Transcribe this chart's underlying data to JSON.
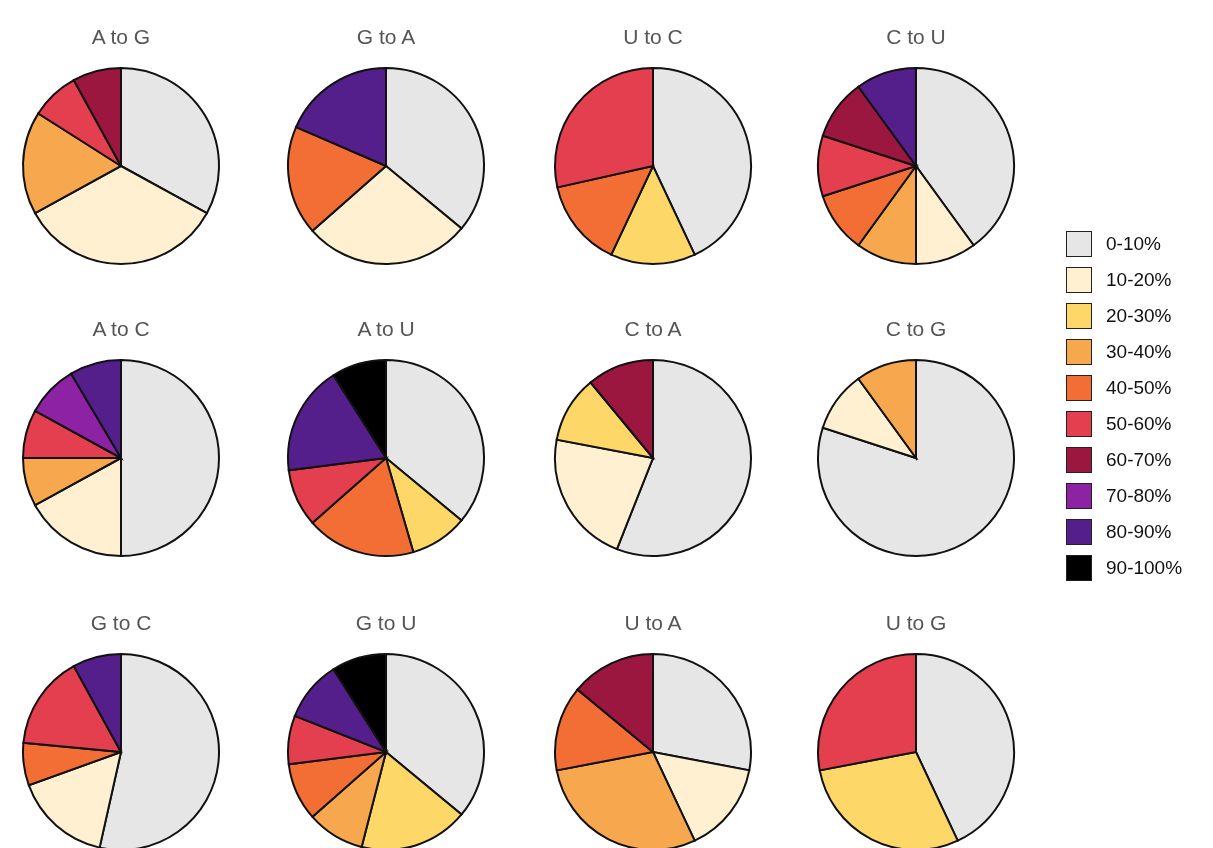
{
  "chart_data": [
    {
      "type": "pie",
      "title": "A to G",
      "legend": "right",
      "categories": [
        "0-10%",
        "10-20%",
        "20-30%",
        "30-40%",
        "40-50%",
        "50-60%",
        "60-70%",
        "70-80%",
        "80-90%",
        "90-100%"
      ],
      "values": [
        33,
        34,
        0,
        17,
        0,
        8,
        8,
        0,
        0,
        0
      ],
      "colors": [
        "#e6e6e6",
        "#fef0d0",
        "#fdd868",
        "#f7a84e",
        "#f36e35",
        "#e33f4f",
        "#9c1740",
        "#8d22a5",
        "#541f8a",
        "#000000"
      ]
    },
    {
      "type": "pie",
      "title": "G to A",
      "categories": [
        null,
        null,
        null,
        null,
        null,
        null,
        null,
        null,
        null,
        null
      ],
      "values": [
        36,
        27.5,
        0,
        0,
        18,
        0,
        0,
        0,
        18.5,
        0
      ],
      "colors": [
        "#e6e6e6",
        "#fef0d0",
        "#fdd868",
        "#f7a84e",
        "#f36e35",
        "#e33f4f",
        "#9c1740",
        "#8d22a5",
        "#541f8a",
        "#000000"
      ]
    },
    {
      "type": "pie",
      "title": "U to C",
      "categories": [
        null,
        null,
        null,
        null,
        null,
        null,
        null,
        null,
        null,
        null
      ],
      "values": [
        43,
        0,
        14,
        0,
        14.5,
        28.5,
        0,
        0,
        0,
        0
      ],
      "colors": [
        "#e6e6e6",
        "#fef0d0",
        "#fdd868",
        "#f7a84e",
        "#f36e35",
        "#e33f4f",
        "#9c1740",
        "#8d22a5",
        "#541f8a",
        "#000000"
      ]
    },
    {
      "type": "pie",
      "title": "C to U",
      "categories": [
        null,
        null,
        null,
        null,
        null,
        null,
        null,
        null,
        null,
        null
      ],
      "values": [
        40,
        10,
        0,
        10,
        10,
        10,
        10,
        0,
        10,
        0
      ],
      "colors": [
        "#e6e6e6",
        "#fef0d0",
        "#fdd868",
        "#f7a84e",
        "#f36e35",
        "#e33f4f",
        "#9c1740",
        "#8d22a5",
        "#541f8a",
        "#000000"
      ]
    },
    {
      "type": "pie",
      "title": "A to C",
      "categories": [
        null,
        null,
        null,
        null,
        null,
        null,
        null,
        null,
        null,
        null
      ],
      "values": [
        50,
        17,
        0,
        8,
        0,
        8,
        0,
        8.5,
        8.5,
        0
      ],
      "colors": [
        "#e6e6e6",
        "#fef0d0",
        "#fdd868",
        "#f7a84e",
        "#f36e35",
        "#e33f4f",
        "#9c1740",
        "#8d22a5",
        "#541f8a",
        "#000000"
      ]
    },
    {
      "type": "pie",
      "title": "A to U",
      "categories": [
        null,
        null,
        null,
        null,
        null,
        null,
        null,
        null,
        null,
        null
      ],
      "values": [
        36,
        0,
        9.5,
        0,
        18,
        9.5,
        0,
        0,
        18,
        9
      ],
      "colors": [
        "#e6e6e6",
        "#fef0d0",
        "#fdd868",
        "#f7a84e",
        "#f36e35",
        "#e33f4f",
        "#9c1740",
        "#8d22a5",
        "#541f8a",
        "#000000"
      ]
    },
    {
      "type": "pie",
      "title": "C to A",
      "categories": [
        null,
        null,
        null,
        null,
        null,
        null,
        null,
        null,
        null,
        null
      ],
      "values": [
        56,
        22,
        11,
        0,
        0,
        0,
        11,
        0,
        0,
        0
      ],
      "colors": [
        "#e6e6e6",
        "#fef0d0",
        "#fdd868",
        "#f7a84e",
        "#f36e35",
        "#e33f4f",
        "#9c1740",
        "#8d22a5",
        "#541f8a",
        "#000000"
      ]
    },
    {
      "type": "pie",
      "title": "C to G",
      "categories": [
        null,
        null,
        null,
        null,
        null,
        null,
        null,
        null,
        null,
        null
      ],
      "values": [
        80,
        10,
        0,
        10,
        0,
        0,
        0,
        0,
        0,
        0
      ],
      "colors": [
        "#e6e6e6",
        "#fef0d0",
        "#fdd868",
        "#f7a84e",
        "#f36e35",
        "#e33f4f",
        "#9c1740",
        "#8d22a5",
        "#541f8a",
        "#000000"
      ]
    },
    {
      "type": "pie",
      "title": "G to C",
      "categories": [
        null,
        null,
        null,
        null,
        null,
        null,
        null,
        null,
        null,
        null
      ],
      "values": [
        53.5,
        16,
        0,
        0,
        7,
        15.5,
        0,
        0,
        8,
        0
      ],
      "colors": [
        "#e6e6e6",
        "#fef0d0",
        "#fdd868",
        "#f7a84e",
        "#f36e35",
        "#e33f4f",
        "#9c1740",
        "#8d22a5",
        "#541f8a",
        "#000000"
      ]
    },
    {
      "type": "pie",
      "title": "G to U",
      "categories": [
        null,
        null,
        null,
        null,
        null,
        null,
        null,
        null,
        null,
        null
      ],
      "values": [
        36,
        0,
        18,
        9.5,
        9.5,
        8,
        0,
        0,
        10,
        9
      ],
      "colors": [
        "#e6e6e6",
        "#fef0d0",
        "#fdd868",
        "#f7a84e",
        "#f36e35",
        "#e33f4f",
        "#9c1740",
        "#8d22a5",
        "#541f8a",
        "#000000"
      ]
    },
    {
      "type": "pie",
      "title": "U to A",
      "categories": [
        null,
        null,
        null,
        null,
        null,
        null,
        null,
        null,
        null,
        null
      ],
      "values": [
        28,
        15,
        0,
        29,
        14,
        0,
        14,
        0,
        0,
        0
      ],
      "colors": [
        "#e6e6e6",
        "#fef0d0",
        "#fdd868",
        "#f7a84e",
        "#f36e35",
        "#e33f4f",
        "#9c1740",
        "#8d22a5",
        "#541f8a",
        "#000000"
      ]
    },
    {
      "type": "pie",
      "title": "U to G",
      "categories": [
        null,
        null,
        null,
        null,
        null,
        null,
        null,
        null,
        null,
        null
      ],
      "values": [
        43,
        0,
        29,
        0,
        0,
        28,
        0,
        0,
        0,
        0
      ],
      "colors": [
        "#e6e6e6",
        "#fef0d0",
        "#fdd868",
        "#f7a84e",
        "#f36e35",
        "#e33f4f",
        "#9c1740",
        "#8d22a5",
        "#541f8a",
        "#000000"
      ]
    }
  ]
}
